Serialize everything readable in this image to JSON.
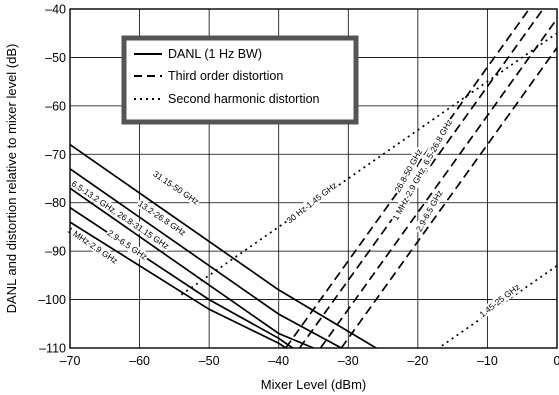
{
  "chart_data": {
    "type": "line",
    "xlabel": "Mixer Level (dBm)",
    "ylabel": "DANL and distortion relative to mixer level (dB)",
    "xlim": [
      -70,
      0
    ],
    "ylim": [
      -110,
      -40
    ],
    "xticks": [
      -70,
      -60,
      -50,
      -40,
      -30,
      -20,
      -10,
      0
    ],
    "yticks": [
      -110,
      -100,
      -90,
      -80,
      -70,
      -60,
      -50,
      -40
    ],
    "xtick_labels": [
      "–70",
      "–60",
      "–50",
      "–40",
      "–30",
      "–20",
      "–10",
      "0"
    ],
    "ytick_labels": [
      "–110",
      "–100",
      "–90",
      "–80",
      "–70",
      "–60",
      "–50",
      "–40"
    ],
    "grid": true,
    "legend_position": "top-left inside plot",
    "legend": [
      {
        "label": "DANL (1 Hz BW)",
        "style": "solid"
      },
      {
        "label": "Third order distortion",
        "style": "dashed"
      },
      {
        "label": "Second harmonic distortion",
        "style": "dotted"
      }
    ],
    "series": [
      {
        "label": "31.15-50 GHz",
        "style": "solid",
        "points": [
          [
            -70,
            -68
          ],
          [
            -40,
            -98
          ],
          [
            -26,
            -110
          ]
        ]
      },
      {
        "label": "13.2-26.8 GHz",
        "style": "solid",
        "points": [
          [
            -70,
            -73
          ],
          [
            -40,
            -103
          ],
          [
            -31,
            -110
          ]
        ]
      },
      {
        "label": "6.5-13.2 GHz, 26.8-31.15 GHz",
        "style": "solid",
        "points": [
          [
            -70,
            -77
          ],
          [
            -40,
            -107
          ],
          [
            -35,
            -110
          ]
        ]
      },
      {
        "label": "2.9-6.5 GHz",
        "style": "solid",
        "points": [
          [
            -70,
            -81
          ],
          [
            -50,
            -100
          ],
          [
            -40,
            -108
          ],
          [
            -38,
            -110
          ]
        ]
      },
      {
        "label": "1 MHz-2.9 GHz",
        "style": "solid",
        "points": [
          [
            -70,
            -84
          ],
          [
            -50,
            -102
          ],
          [
            -40,
            -109
          ],
          [
            -39,
            -110
          ]
        ]
      },
      {
        "label": "26.8-50 GHz",
        "style": "dashed",
        "points": [
          [
            -39,
            -110
          ],
          [
            -4,
            -40
          ]
        ]
      },
      {
        "label": "1 MHz-2.9 GHz, 6.5-26.8 GHz",
        "style": "dashed",
        "points": [
          [
            -37,
            -110
          ],
          [
            -2,
            -40
          ]
        ]
      },
      {
        "label": "",
        "style": "dashed",
        "points": [
          [
            -34,
            -110
          ],
          [
            1,
            -40
          ]
        ]
      },
      {
        "label": "2.9-6.5 GHz",
        "style": "dashed",
        "points": [
          [
            -31,
            -110
          ],
          [
            4,
            -40
          ]
        ]
      },
      {
        "label": "30 Hz-1.45 GHz",
        "style": "dotted",
        "points": [
          [
            -54,
            -99
          ],
          [
            0,
            -45
          ]
        ]
      },
      {
        "label": "1.45-25 GHz",
        "style": "dotted",
        "points": [
          [
            -30,
            -123
          ],
          [
            0,
            -93
          ]
        ]
      }
    ]
  }
}
